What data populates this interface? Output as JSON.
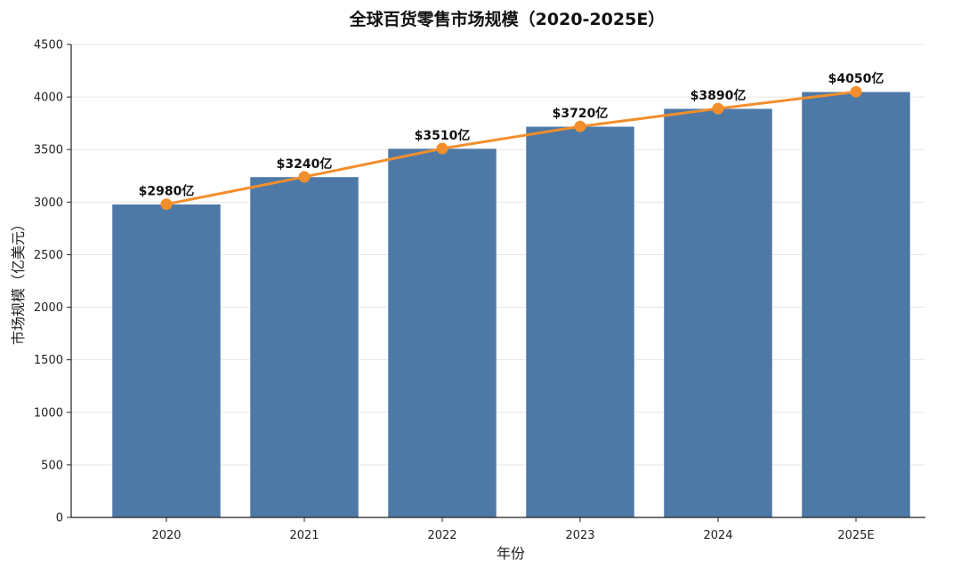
{
  "chart_data": {
    "type": "bar",
    "title": "全球百货零售市场规模（2020-2025E）",
    "xlabel": "年份",
    "ylabel": "市场规模（亿美元）",
    "categories": [
      "2020",
      "2021",
      "2022",
      "2023",
      "2024",
      "2025E"
    ],
    "series": [
      {
        "type": "bar",
        "values": [
          2980,
          3240,
          3510,
          3720,
          3890,
          4050
        ],
        "color": "#4E79A7"
      },
      {
        "type": "line",
        "values": [
          2980,
          3240,
          3510,
          3720,
          3890,
          4050
        ],
        "color": "#F28E2B"
      }
    ],
    "data_labels": [
      "$2980亿",
      "$3240亿",
      "$3510亿",
      "$3720亿",
      "$3890亿",
      "$4050亿"
    ],
    "yticks": [
      "0",
      "500",
      "1000",
      "1500",
      "2000",
      "2500",
      "3000",
      "3500",
      "4000",
      "4500"
    ],
    "ylim": [
      0,
      4500
    ],
    "grid": true
  }
}
